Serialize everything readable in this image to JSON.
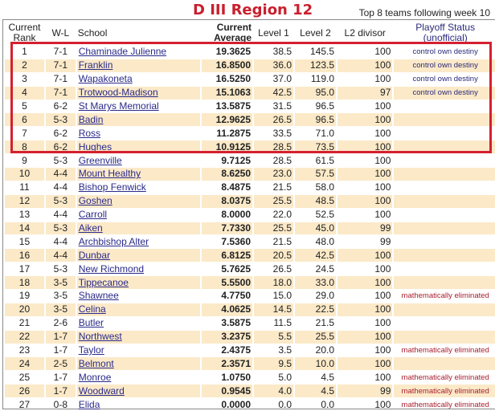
{
  "title": "D III Region 12",
  "subtitle": "Top 8 teams following week 10",
  "colors": {
    "title": "#c8202e",
    "highlight_box": "#d42030",
    "row_alt": "#fbe9c8",
    "link": "#2a2a8a",
    "eliminated": "#a82030"
  },
  "columns": [
    "Current Rank",
    "W-L",
    "School",
    "Current Average",
    "Level 1",
    "Level 2",
    "L2 divisor",
    "Playoff Status (unofficial)"
  ],
  "rows": [
    {
      "rank": "1",
      "wl": "7-1",
      "school": "Chaminade Julienne",
      "avg": "19.3625",
      "l1": "38.5",
      "l2": "145.5",
      "div": "100",
      "status": "control own destiny",
      "status_type": "control"
    },
    {
      "rank": "2",
      "wl": "7-1",
      "school": "Franklin",
      "avg": "16.8500",
      "l1": "36.0",
      "l2": "123.5",
      "div": "100",
      "status": "control own destiny",
      "status_type": "control"
    },
    {
      "rank": "3",
      "wl": "7-1",
      "school": "Wapakoneta",
      "avg": "16.5250",
      "l1": "37.0",
      "l2": "119.0",
      "div": "100",
      "status": "control own destiny",
      "status_type": "control"
    },
    {
      "rank": "4",
      "wl": "7-1",
      "school": "Trotwood-Madison",
      "avg": "15.1063",
      "l1": "42.5",
      "l2": "95.0",
      "div": "97",
      "status": "control own destiny",
      "status_type": "control"
    },
    {
      "rank": "5",
      "wl": "6-2",
      "school": "St Marys Memorial",
      "avg": "13.5875",
      "l1": "31.5",
      "l2": "96.5",
      "div": "100",
      "status": "",
      "status_type": ""
    },
    {
      "rank": "6",
      "wl": "5-3",
      "school": "Badin",
      "avg": "12.9625",
      "l1": "26.5",
      "l2": "96.5",
      "div": "100",
      "status": "",
      "status_type": ""
    },
    {
      "rank": "7",
      "wl": "6-2",
      "school": "Ross",
      "avg": "11.2875",
      "l1": "33.5",
      "l2": "71.0",
      "div": "100",
      "status": "",
      "status_type": ""
    },
    {
      "rank": "8",
      "wl": "6-2",
      "school": "Hughes",
      "avg": "10.9125",
      "l1": "28.5",
      "l2": "73.5",
      "div": "100",
      "status": "",
      "status_type": ""
    },
    {
      "rank": "9",
      "wl": "5-3",
      "school": "Greenville",
      "avg": "9.7125",
      "l1": "28.5",
      "l2": "61.5",
      "div": "100",
      "status": "",
      "status_type": ""
    },
    {
      "rank": "10",
      "wl": "4-4",
      "school": "Mount Healthy",
      "avg": "8.6250",
      "l1": "23.0",
      "l2": "57.5",
      "div": "100",
      "status": "",
      "status_type": ""
    },
    {
      "rank": "11",
      "wl": "4-4",
      "school": "Bishop Fenwick",
      "avg": "8.4875",
      "l1": "21.5",
      "l2": "58.0",
      "div": "100",
      "status": "",
      "status_type": ""
    },
    {
      "rank": "12",
      "wl": "5-3",
      "school": "Goshen",
      "avg": "8.0375",
      "l1": "25.5",
      "l2": "48.5",
      "div": "100",
      "status": "",
      "status_type": ""
    },
    {
      "rank": "13",
      "wl": "4-4",
      "school": "Carroll",
      "avg": "8.0000",
      "l1": "22.0",
      "l2": "52.5",
      "div": "100",
      "status": "",
      "status_type": ""
    },
    {
      "rank": "14",
      "wl": "5-3",
      "school": "Aiken",
      "avg": "7.7330",
      "l1": "25.5",
      "l2": "45.0",
      "div": "99",
      "status": "",
      "status_type": ""
    },
    {
      "rank": "15",
      "wl": "4-4",
      "school": "Archbishop Alter",
      "avg": "7.5360",
      "l1": "21.5",
      "l2": "48.0",
      "div": "99",
      "status": "",
      "status_type": ""
    },
    {
      "rank": "16",
      "wl": "4-4",
      "school": "Dunbar",
      "avg": "6.8125",
      "l1": "20.5",
      "l2": "42.5",
      "div": "100",
      "status": "",
      "status_type": ""
    },
    {
      "rank": "17",
      "wl": "5-3",
      "school": "New Richmond",
      "avg": "5.7625",
      "l1": "26.5",
      "l2": "24.5",
      "div": "100",
      "status": "",
      "status_type": ""
    },
    {
      "rank": "18",
      "wl": "3-5",
      "school": "Tippecanoe",
      "avg": "5.5500",
      "l1": "18.0",
      "l2": "33.0",
      "div": "100",
      "status": "",
      "status_type": ""
    },
    {
      "rank": "19",
      "wl": "3-5",
      "school": "Shawnee",
      "avg": "4.7750",
      "l1": "15.0",
      "l2": "29.0",
      "div": "100",
      "status": "mathematically eliminated",
      "status_type": "elim"
    },
    {
      "rank": "20",
      "wl": "3-5",
      "school": "Celina",
      "avg": "4.0625",
      "l1": "14.5",
      "l2": "22.5",
      "div": "100",
      "status": "",
      "status_type": ""
    },
    {
      "rank": "21",
      "wl": "2-6",
      "school": "Butler",
      "avg": "3.5875",
      "l1": "11.5",
      "l2": "21.5",
      "div": "100",
      "status": "",
      "status_type": ""
    },
    {
      "rank": "22",
      "wl": "1-7",
      "school": "Northwest",
      "avg": "3.2375",
      "l1": "5.5",
      "l2": "25.5",
      "div": "100",
      "status": "",
      "status_type": ""
    },
    {
      "rank": "23",
      "wl": "1-7",
      "school": "Taylor",
      "avg": "2.4375",
      "l1": "3.5",
      "l2": "20.0",
      "div": "100",
      "status": "mathematically eliminated",
      "status_type": "elim"
    },
    {
      "rank": "24",
      "wl": "2-5",
      "school": "Belmont",
      "avg": "2.3571",
      "l1": "9.5",
      "l2": "10.0",
      "div": "100",
      "status": "",
      "status_type": ""
    },
    {
      "rank": "25",
      "wl": "1-7",
      "school": "Monroe",
      "avg": "1.0750",
      "l1": "5.0",
      "l2": "4.5",
      "div": "100",
      "status": "mathematically eliminated",
      "status_type": "elim"
    },
    {
      "rank": "26",
      "wl": "1-7",
      "school": "Woodward",
      "avg": "0.9545",
      "l1": "4.0",
      "l2": "4.5",
      "div": "99",
      "status": "mathematically eliminated",
      "status_type": "elim"
    },
    {
      "rank": "27",
      "wl": "0-8",
      "school": "Elida",
      "avg": "0.0000",
      "l1": "0.0",
      "l2": "0.0",
      "div": "100",
      "status": "mathematically eliminated",
      "status_type": "elim"
    }
  ]
}
